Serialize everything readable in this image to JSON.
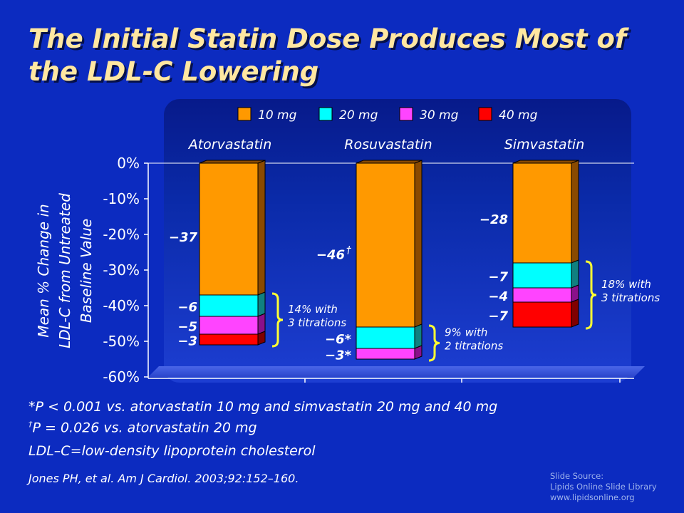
{
  "slide": {
    "title": "The Initial Statin Dose Produces Most of the LDL-C Lowering",
    "footnote_1": "*P < 0.001 vs. atorvastatin 10 mg and simvastatin 20 mg and 40 mg",
    "footnote_2_mark": "†",
    "footnote_2": "P = 0.026 vs. atorvastatin 20 mg",
    "footnote_3": "LDL–C=low-density lipoprotein cholesterol",
    "citation": "Jones PH, et al. Am J Cardiol. 2003;92:152–160.",
    "source": [
      "Slide Source:",
      "Lipids Online Slide Library",
      "www.lipidsonline.org"
    ]
  },
  "chart_data": {
    "type": "bar",
    "stacked": true,
    "categories": [
      "Atorvastatin",
      "Rosuvastatin",
      "Simvastatin"
    ],
    "ylabel": [
      "Mean % Change in",
      "LDL-C from Untreated",
      "Baseline Value"
    ],
    "ylim": [
      -60,
      0
    ],
    "yticks": [
      0,
      -10,
      -20,
      -30,
      -40,
      -50,
      -60
    ],
    "ytick_labels": [
      "0%",
      "-10%",
      "-20%",
      "-30%",
      "-40%",
      "-50%",
      "-60%"
    ],
    "legend_position": "top",
    "series": [
      {
        "name": "10 mg",
        "color": "#ff9900",
        "side_color": "#8a4a00",
        "values": [
          -37,
          -46,
          -28
        ],
        "labels": [
          "−37",
          "−46",
          "−28"
        ],
        "label_marks": [
          "",
          "†",
          ""
        ]
      },
      {
        "name": "20 mg",
        "color": "#00ffff",
        "side_color": "#108080",
        "values": [
          -6,
          -6,
          -7
        ],
        "labels": [
          "−6",
          "−6*",
          "−7"
        ]
      },
      {
        "name": "30 mg",
        "color": "#ff44ff",
        "side_color": "#8a108a",
        "values": [
          -5,
          -3,
          -4
        ],
        "labels": [
          "−5",
          "−3*",
          "−4"
        ]
      },
      {
        "name": "40 mg",
        "color": "#ff0000",
        "side_color": "#800000",
        "values": [
          -3,
          null,
          -7
        ],
        "labels": [
          "−3",
          "",
          "−7"
        ]
      }
    ],
    "annotations": [
      {
        "lines": [
          "14% with",
          "3 titrations"
        ]
      },
      {
        "lines": [
          "9% with",
          "2 titrations"
        ]
      },
      {
        "lines": [
          "18% with",
          "3 titrations"
        ]
      }
    ]
  }
}
